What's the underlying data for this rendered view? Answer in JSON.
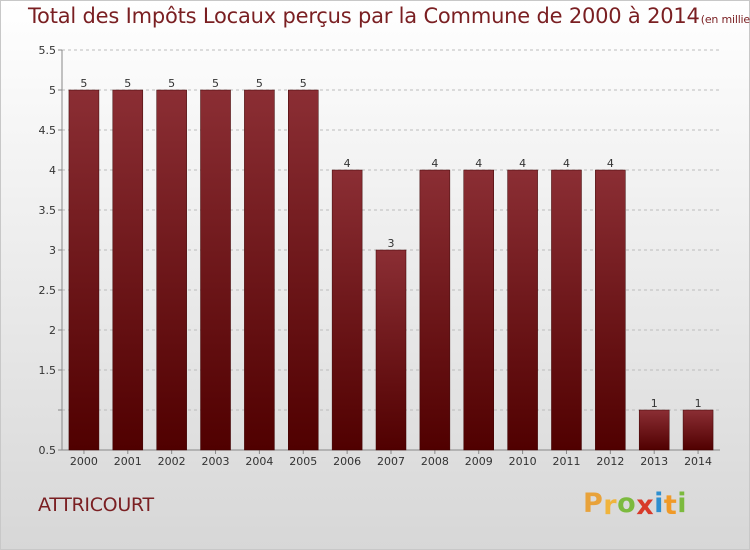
{
  "chart_data": {
    "type": "bar",
    "title": "Total des Impôts Locaux perçus par la Commune de 2000 à 2014",
    "unit_note": "(en milliers d'€)",
    "categories": [
      "2000",
      "2001",
      "2002",
      "2003",
      "2004",
      "2005",
      "2006",
      "2007",
      "2008",
      "2009",
      "2010",
      "2011",
      "2012",
      "2013",
      "2014"
    ],
    "values": [
      5,
      5,
      5,
      5,
      5,
      5,
      4,
      3,
      4,
      4,
      4,
      4,
      4,
      1,
      1
    ],
    "ylim": [
      0.5,
      5.5
    ],
    "yticks": [
      0.5,
      1,
      1.5,
      2,
      2.5,
      3,
      3.5,
      4,
      4.5,
      5,
      5.5
    ],
    "ytick_labels": [
      "0.5",
      "",
      "1.5",
      "2",
      "2.5",
      "3",
      "3.5",
      "4",
      "4.5",
      "5",
      "5.5"
    ],
    "xlabel": "",
    "ylabel": "",
    "grid": "horizontal-dashed",
    "bar_color_top": "#8b2e34",
    "bar_color_bottom": "#500000"
  },
  "commune_name": "ATTRICOURT",
  "logo": {
    "letters": [
      "P",
      "r",
      "o",
      "x",
      "i",
      "t",
      "i"
    ],
    "colors": [
      "#e8a23a",
      "#f0b43c",
      "#7cba3e",
      "#d83a2a",
      "#2e8fd0",
      "#f09a28",
      "#7cba3e"
    ]
  }
}
